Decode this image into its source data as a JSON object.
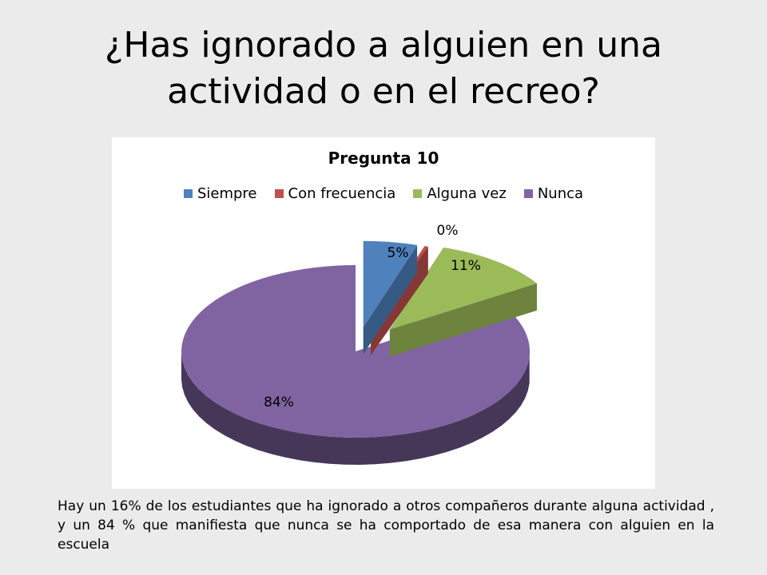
{
  "slide": {
    "title": "¿Has ignorado a alguien en una actividad o en el recreo?",
    "caption": "Hay un 16% de los estudiantes que  ha ignorado a  otros compañeros durante alguna actividad , y un 84 % que manifiesta que nunca se ha comportado de esa manera con alguien en la escuela"
  },
  "chart_data": {
    "type": "pie",
    "style": "3d-exploded",
    "title": "Pregunta 10",
    "legend_position": "top",
    "categories": [
      "Siempre",
      "Con frecuencia",
      "Alguna vez",
      "Nunca"
    ],
    "values": [
      5,
      0,
      11,
      84
    ],
    "data_labels": [
      "5%",
      "0%",
      "11%",
      "84%"
    ],
    "colors": [
      "#4f81bd",
      "#c0504d",
      "#9bbb59",
      "#8064a2"
    ]
  }
}
